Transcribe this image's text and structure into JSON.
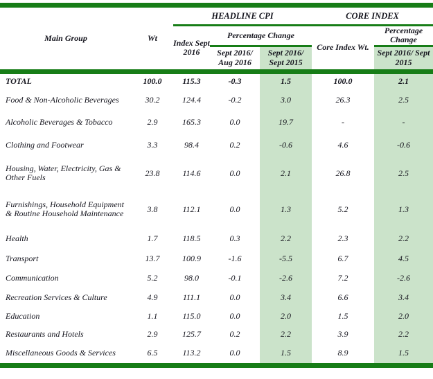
{
  "table": {
    "headers": {
      "main_group": "Main Group",
      "wt": "Wt",
      "headline_cpi": "HEADLINE CPI",
      "core_index": "CORE INDEX",
      "index_sept_2016": "Index Sept 2016",
      "percentage_change": "Percentage Change",
      "sept_2016_aug_2016": "Sept 2016/ Aug 2016",
      "sept_2016_sept_2015": "Sept 2016/ Sept 2015",
      "core_index_wt": "Core Index Wt.",
      "core_percentage_change": "Percentage Change",
      "core_sept_2016_sept_2015": "Sept 2016/ Sept 2015"
    },
    "rows": [
      {
        "label": "TOTAL",
        "wt": "100.0",
        "index": "115.3",
        "pct_mom": "-0.3",
        "pct_yoy": "1.5",
        "core_wt": "100.0",
        "core_pct_yoy": "2.1",
        "bold": true
      },
      {
        "label": "Food & Non-Alcoholic Beverages",
        "wt": "30.2",
        "index": "124.4",
        "pct_mom": "-0.2",
        "pct_yoy": "3.0",
        "core_wt": "26.3",
        "core_pct_yoy": "2.5",
        "bold": false
      },
      {
        "label": "Alcoholic Beverages & Tobacco",
        "wt": "2.9",
        "index": "165.3",
        "pct_mom": "0.0",
        "pct_yoy": "19.7",
        "core_wt": "-",
        "core_pct_yoy": "-",
        "bold": false
      },
      {
        "label": "Clothing and Footwear",
        "wt": "3.3",
        "index": "98.4",
        "pct_mom": "0.2",
        "pct_yoy": "-0.6",
        "core_wt": "4.6",
        "core_pct_yoy": "-0.6",
        "bold": false
      },
      {
        "label": "Housing, Water, Electricity, Gas & Other Fuels",
        "wt": "23.8",
        "index": "114.6",
        "pct_mom": "0.0",
        "pct_yoy": "2.1",
        "core_wt": "26.8",
        "core_pct_yoy": "2.5",
        "bold": false
      },
      {
        "label": "Furnishings, Household Equipment  & Routine Household Maintenance",
        "wt": "3.8",
        "index": "112.1",
        "pct_mom": "0.0",
        "pct_yoy": "1.3",
        "core_wt": "5.2",
        "core_pct_yoy": "1.3",
        "bold": false
      },
      {
        "label": "Health",
        "wt": "1.7",
        "index": "118.5",
        "pct_mom": "0.3",
        "pct_yoy": "2.2",
        "core_wt": "2.3",
        "core_pct_yoy": "2.2",
        "bold": false
      },
      {
        "label": "Transport",
        "wt": "13.7",
        "index": "100.9",
        "pct_mom": "-1.6",
        "pct_yoy": "-5.5",
        "core_wt": "6.7",
        "core_pct_yoy": "4.5",
        "bold": false
      },
      {
        "label": "Communication",
        "wt": "5.2",
        "index": "98.0",
        "pct_mom": "-0.1",
        "pct_yoy": "-2.6",
        "core_wt": "7.2",
        "core_pct_yoy": "-2.6",
        "bold": false
      },
      {
        "label": "Recreation Services & Culture",
        "wt": "4.9",
        "index": "111.1",
        "pct_mom": "0.0",
        "pct_yoy": "3.4",
        "core_wt": "6.6",
        "core_pct_yoy": "3.4",
        "bold": false
      },
      {
        "label": "Education",
        "wt": "1.1",
        "index": "115.0",
        "pct_mom": "0.0",
        "pct_yoy": "2.0",
        "core_wt": "1.5",
        "core_pct_yoy": "2.0",
        "bold": false
      },
      {
        "label": "Restaurants and Hotels",
        "wt": "2.9",
        "index": "125.7",
        "pct_mom": "0.2",
        "pct_yoy": "2.2",
        "core_wt": "3.9",
        "core_pct_yoy": "2.2",
        "bold": false
      },
      {
        "label": "Miscellaneous Goods & Services",
        "wt": "6.5",
        "index": "113.2",
        "pct_mom": "0.0",
        "pct_yoy": "1.5",
        "core_wt": "8.9",
        "core_pct_yoy": "1.5",
        "bold": false
      }
    ]
  },
  "colors": {
    "border_green": "#177d17",
    "shade_green": "#cbe3ca",
    "text": "#15151e"
  }
}
